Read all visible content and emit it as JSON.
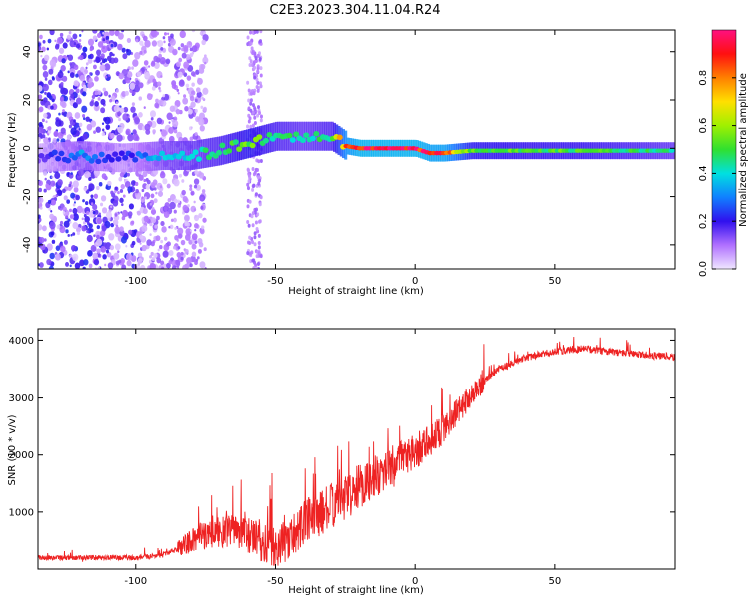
{
  "title": "C2E3.2023.304.11.04.R24",
  "chart_data": [
    {
      "type": "heatmap",
      "xlabel": "Height of straight line (km)",
      "ylabel": "Frequency (Hz)",
      "xlim": [
        -135,
        93
      ],
      "ylim": [
        -50,
        49
      ],
      "xticks": [
        -100,
        -50,
        0,
        50
      ],
      "yticks": [
        -40,
        -20,
        0,
        20,
        40
      ],
      "colorbar": {
        "label": "Normalized spectral amplitude",
        "range": [
          0.0,
          1.0
        ],
        "ticks": [
          0.0,
          0.2,
          0.4,
          0.6,
          0.8
        ]
      },
      "ridge": {
        "x": [
          -135,
          -120,
          -105,
          -90,
          -80,
          -70,
          -60,
          -50,
          -40,
          -30,
          -25,
          -20,
          -10,
          0,
          5,
          10,
          20,
          40,
          60,
          80,
          93
        ],
        "frequency": [
          -4,
          -3,
          -4,
          -3,
          -3,
          -1,
          2,
          5,
          5,
          5,
          1,
          0,
          0,
          0,
          -2,
          -2,
          -1,
          -1,
          -1,
          -1,
          -1
        ],
        "amplitude": [
          0.15,
          0.35,
          0.2,
          0.4,
          0.45,
          0.5,
          0.6,
          0.5,
          0.45,
          0.5,
          0.9,
          1.0,
          1.0,
          1.0,
          0.95,
          0.95,
          0.6,
          0.55,
          0.55,
          0.5,
          0.45
        ]
      }
    },
    {
      "type": "line",
      "xlabel": "Height of straight line (km)",
      "ylabel": "SNR (10 * v/v)",
      "xlim": [
        -135,
        93
      ],
      "ylim": [
        0,
        4200
      ],
      "xticks": [
        -100,
        -50,
        0,
        50
      ],
      "yticks": [
        1000,
        2000,
        3000,
        4000
      ],
      "color": "#ee2222",
      "series": [
        {
          "x": [
            -135,
            -120,
            -110,
            -100,
            -90,
            -85,
            -80,
            -75,
            -70,
            -65,
            -60,
            -55,
            -50,
            -45,
            -40,
            -35,
            -30,
            -25,
            -20,
            -15,
            -10,
            -5,
            0,
            5,
            10,
            15,
            20,
            25,
            30,
            35,
            40,
            50,
            60,
            70,
            80,
            93
          ],
          "y": [
            200,
            200,
            200,
            200,
            250,
            350,
            500,
            600,
            650,
            650,
            600,
            450,
            350,
            550,
            800,
            950,
            1100,
            1250,
            1450,
            1600,
            1750,
            1900,
            2050,
            2250,
            2450,
            2750,
            3050,
            3300,
            3500,
            3600,
            3700,
            3800,
            3850,
            3800,
            3750,
            3700
          ]
        }
      ]
    }
  ]
}
